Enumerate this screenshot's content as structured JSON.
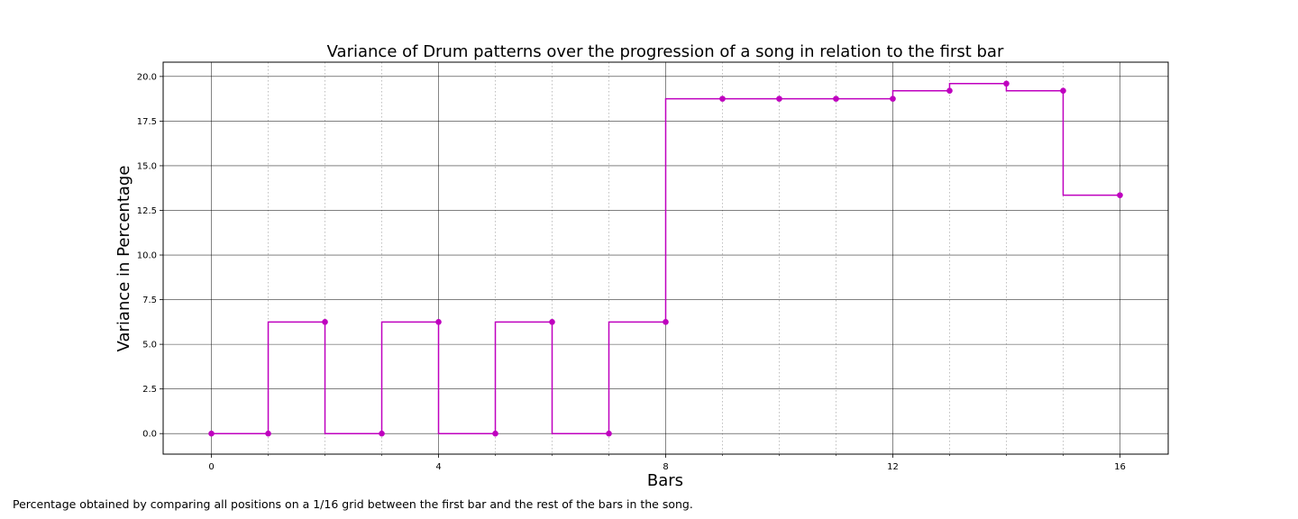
{
  "chart_data": {
    "type": "line",
    "step": "post",
    "title": "Variance of Drum patterns over the progression of a song in relation to the first bar",
    "xlabel": "Bars",
    "ylabel": "Variance in Percentage",
    "xlim": [
      -0.85,
      16.85
    ],
    "ylim": [
      -1.15,
      20.8
    ],
    "xticks": [
      0,
      4,
      8,
      12,
      16
    ],
    "xtick_labels": [
      "0",
      "4",
      "8",
      "12",
      "16"
    ],
    "yticks": [
      0,
      2.5,
      5,
      7.5,
      10,
      12.5,
      15,
      17.5,
      20
    ],
    "ytick_labels": [
      "0.0",
      "2.5",
      "5.0",
      "7.5",
      "10.0",
      "12.5",
      "15.0",
      "17.5",
      "20.0"
    ],
    "x_minor_ticks": [
      1,
      2,
      3,
      5,
      6,
      7,
      9,
      10,
      11,
      13,
      14,
      15
    ],
    "grid": {
      "major": true,
      "minor_x": true
    },
    "color": "#bf00bf",
    "series": [
      {
        "x": [
          0,
          1,
          2,
          3,
          4,
          5,
          6,
          7,
          8,
          9,
          10,
          11,
          12,
          13,
          14,
          15,
          16
        ],
        "values": [
          0,
          0,
          6.25,
          0,
          6.25,
          0,
          6.25,
          0,
          6.25,
          18.75,
          18.75,
          18.75,
          18.75,
          19.2,
          19.6,
          19.2,
          13.35
        ],
        "step_values": [
          0,
          6.25,
          0,
          6.25,
          0,
          6.25,
          0,
          6.25,
          18.75,
          18.75,
          18.75,
          18.75,
          19.2,
          19.6,
          19.2,
          13.35,
          13.35
        ]
      }
    ]
  },
  "caption": "Percentage obtained by comparing all positions on a 1/16 grid between the first bar and the rest of the bars in the song."
}
